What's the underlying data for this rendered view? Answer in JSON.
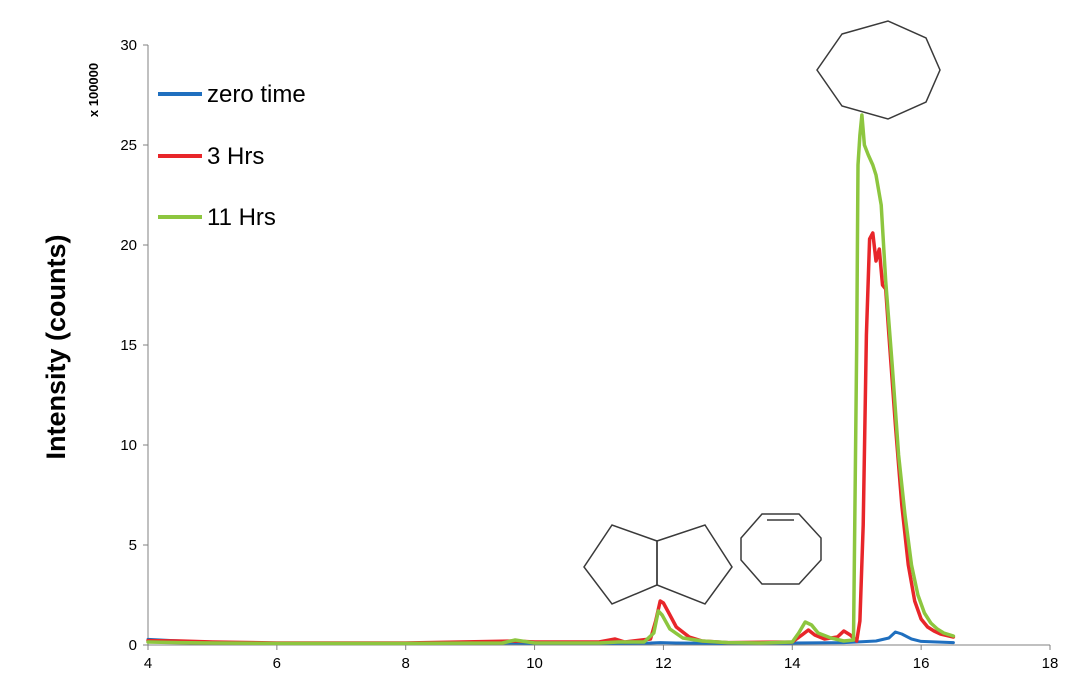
{
  "chart_data": {
    "type": "line",
    "title": "",
    "xlabel": "",
    "ylabel": "Intensity (counts)",
    "y_multiplier_label": "x 100000",
    "xlim": [
      4,
      18
    ],
    "ylim": [
      0,
      30
    ],
    "x_ticks": [
      "4",
      "6",
      "8",
      "10",
      "12",
      "14",
      "16",
      "18"
    ],
    "y_ticks": [
      "0",
      "5",
      "10",
      "15",
      "20",
      "25",
      "30"
    ],
    "grid": false,
    "legend_position": "top-left",
    "series": [
      {
        "name": "zero time",
        "color": "#1f6fbf",
        "points": [
          [
            4.0,
            0.28
          ],
          [
            4.5,
            0.2
          ],
          [
            5.0,
            0.12
          ],
          [
            6.0,
            0.08
          ],
          [
            8.0,
            0.08
          ],
          [
            9.7,
            0.1
          ],
          [
            10.0,
            0.08
          ],
          [
            11.0,
            0.08
          ],
          [
            11.8,
            0.1
          ],
          [
            11.95,
            0.12
          ],
          [
            12.2,
            0.1
          ],
          [
            13.0,
            0.08
          ],
          [
            14.0,
            0.1
          ],
          [
            14.8,
            0.12
          ],
          [
            15.0,
            0.15
          ],
          [
            15.3,
            0.2
          ],
          [
            15.5,
            0.35
          ],
          [
            15.6,
            0.65
          ],
          [
            15.7,
            0.55
          ],
          [
            15.85,
            0.3
          ],
          [
            16.0,
            0.18
          ],
          [
            16.5,
            0.12
          ]
        ]
      },
      {
        "name": "3 Hrs",
        "color": "#e8262a",
        "points": [
          [
            4.0,
            0.22
          ],
          [
            4.5,
            0.2
          ],
          [
            5.0,
            0.15
          ],
          [
            6.0,
            0.1
          ],
          [
            8.0,
            0.1
          ],
          [
            9.7,
            0.2
          ],
          [
            10.0,
            0.15
          ],
          [
            11.0,
            0.15
          ],
          [
            11.25,
            0.3
          ],
          [
            11.4,
            0.15
          ],
          [
            11.8,
            0.3
          ],
          [
            11.88,
            1.2
          ],
          [
            11.95,
            2.2
          ],
          [
            12.0,
            2.1
          ],
          [
            12.1,
            1.5
          ],
          [
            12.2,
            0.9
          ],
          [
            12.4,
            0.4
          ],
          [
            12.6,
            0.2
          ],
          [
            13.0,
            0.12
          ],
          [
            14.0,
            0.15
          ],
          [
            14.15,
            0.5
          ],
          [
            14.25,
            0.75
          ],
          [
            14.35,
            0.5
          ],
          [
            14.5,
            0.3
          ],
          [
            14.7,
            0.4
          ],
          [
            14.8,
            0.7
          ],
          [
            14.9,
            0.5
          ],
          [
            15.0,
            0.2
          ],
          [
            15.05,
            1.2
          ],
          [
            15.1,
            6.0
          ],
          [
            15.15,
            15.5
          ],
          [
            15.2,
            20.3
          ],
          [
            15.25,
            20.6
          ],
          [
            15.3,
            19.2
          ],
          [
            15.35,
            19.8
          ],
          [
            15.4,
            18.0
          ],
          [
            15.45,
            17.8
          ],
          [
            15.5,
            15.5
          ],
          [
            15.6,
            11.0
          ],
          [
            15.7,
            7.0
          ],
          [
            15.8,
            4.0
          ],
          [
            15.9,
            2.2
          ],
          [
            16.0,
            1.3
          ],
          [
            16.1,
            0.9
          ],
          [
            16.2,
            0.7
          ],
          [
            16.3,
            0.55
          ],
          [
            16.5,
            0.4
          ]
        ]
      },
      {
        "name": "11 Hrs",
        "color": "#8dc63f",
        "points": [
          [
            4.0,
            0.15
          ],
          [
            4.5,
            0.12
          ],
          [
            5.0,
            0.1
          ],
          [
            6.0,
            0.08
          ],
          [
            8.0,
            0.08
          ],
          [
            9.5,
            0.1
          ],
          [
            9.7,
            0.25
          ],
          [
            9.9,
            0.15
          ],
          [
            10.0,
            0.1
          ],
          [
            11.0,
            0.1
          ],
          [
            11.3,
            0.15
          ],
          [
            11.7,
            0.15
          ],
          [
            11.85,
            0.6
          ],
          [
            11.92,
            1.7
          ],
          [
            11.98,
            1.5
          ],
          [
            12.1,
            0.8
          ],
          [
            12.3,
            0.35
          ],
          [
            12.6,
            0.2
          ],
          [
            13.0,
            0.12
          ],
          [
            13.5,
            0.1
          ],
          [
            14.0,
            0.15
          ],
          [
            14.1,
            0.6
          ],
          [
            14.2,
            1.15
          ],
          [
            14.3,
            1.0
          ],
          [
            14.4,
            0.6
          ],
          [
            14.6,
            0.35
          ],
          [
            14.8,
            0.2
          ],
          [
            14.95,
            0.25
          ],
          [
            15.0,
            15.0
          ],
          [
            15.02,
            24.0
          ],
          [
            15.05,
            25.5
          ],
          [
            15.08,
            26.5
          ],
          [
            15.12,
            25.0
          ],
          [
            15.18,
            24.5
          ],
          [
            15.25,
            24.0
          ],
          [
            15.3,
            23.5
          ],
          [
            15.38,
            22.0
          ],
          [
            15.45,
            18.2
          ],
          [
            15.55,
            14.0
          ],
          [
            15.65,
            9.5
          ],
          [
            15.75,
            6.5
          ],
          [
            15.85,
            4.0
          ],
          [
            15.95,
            2.5
          ],
          [
            16.05,
            1.6
          ],
          [
            16.15,
            1.1
          ],
          [
            16.25,
            0.8
          ],
          [
            16.35,
            0.6
          ],
          [
            16.5,
            0.45
          ]
        ]
      }
    ]
  }
}
